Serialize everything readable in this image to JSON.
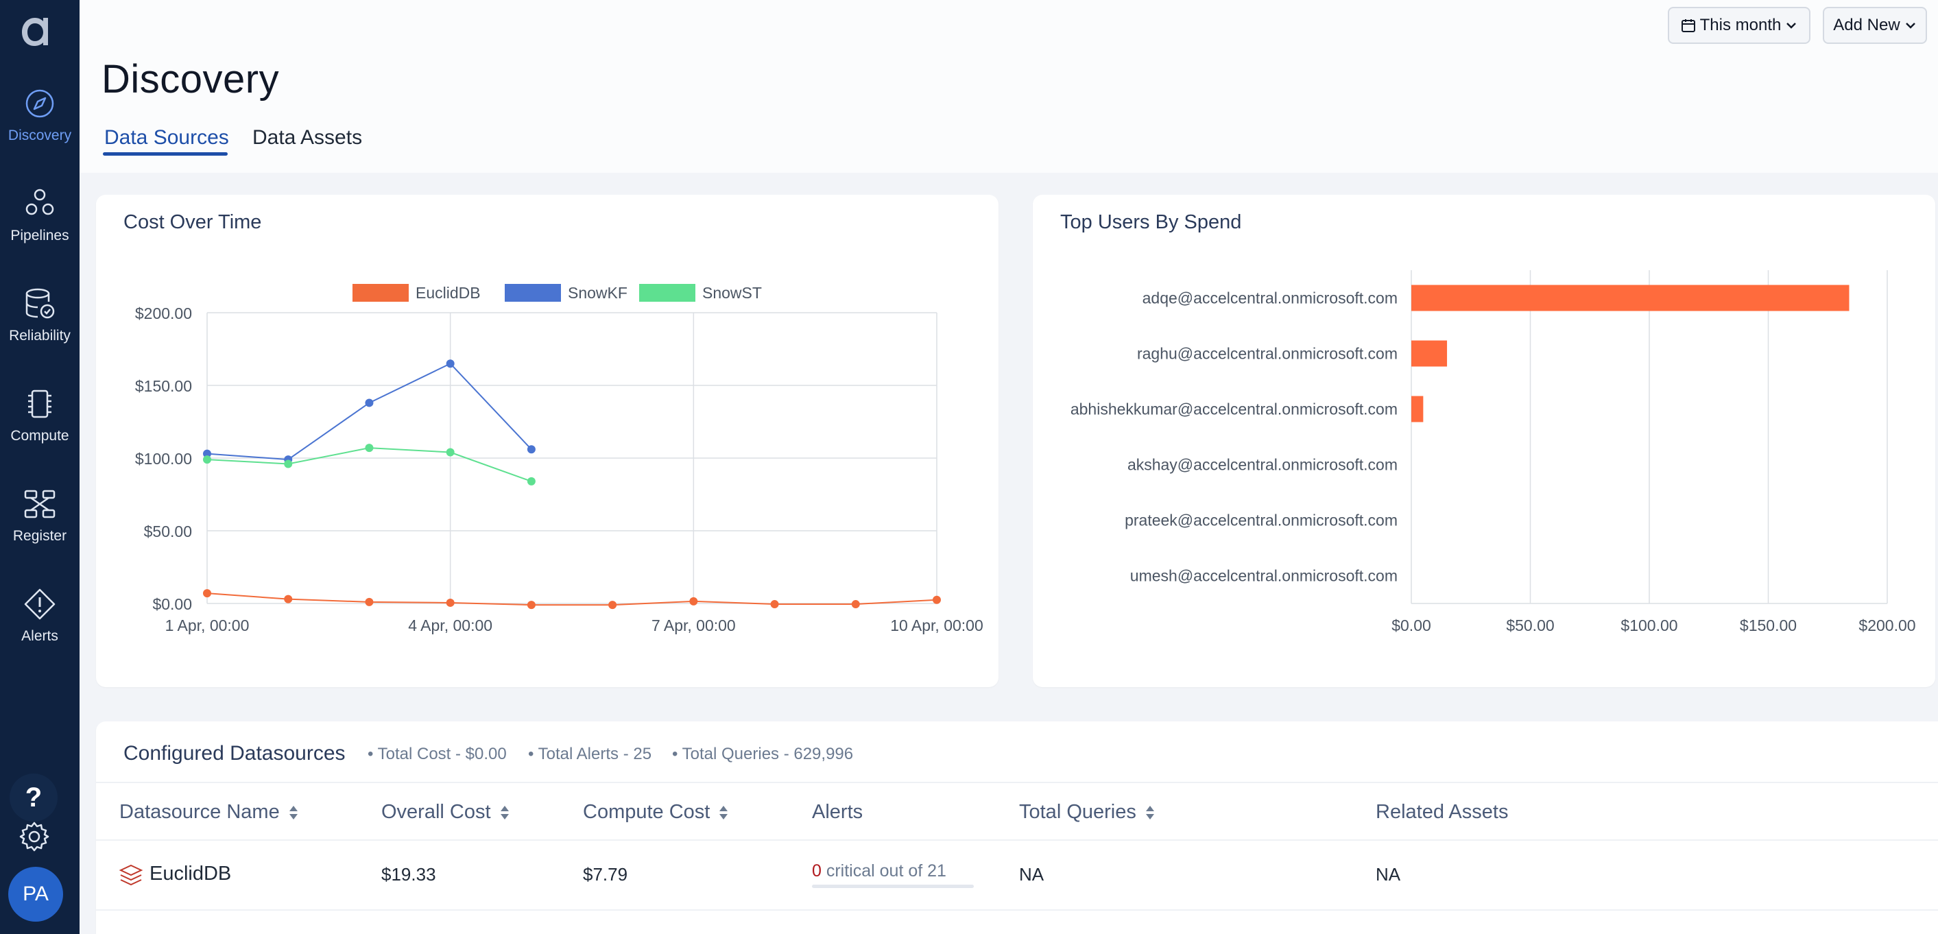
{
  "app": {
    "logo": "a-logo"
  },
  "sidebar": {
    "items": [
      {
        "label": "Discovery",
        "icon": "compass-icon",
        "active": true
      },
      {
        "label": "Pipelines",
        "icon": "pipelines-icon"
      },
      {
        "label": "Reliability",
        "icon": "database-check-icon"
      },
      {
        "label": "Compute",
        "icon": "chip-icon"
      },
      {
        "label": "Register",
        "icon": "register-icon"
      },
      {
        "label": "Alerts",
        "icon": "alert-diamond-icon"
      }
    ],
    "help": "?",
    "avatar": "PA"
  },
  "header": {
    "title": "Discovery",
    "tabs": [
      {
        "label": "Data Sources",
        "active": true
      },
      {
        "label": "Data Assets"
      }
    ],
    "date_filter": "This month",
    "add_new": "Add New"
  },
  "cost_over_time": {
    "title": "Cost Over Time",
    "chart_data": {
      "type": "line",
      "x": [
        "1 Apr, 00:00",
        "2 Apr, 00:00",
        "3 Apr, 00:00",
        "4 Apr, 00:00",
        "5 Apr, 00:00",
        "6 Apr, 00:00",
        "7 Apr, 00:00",
        "8 Apr, 00:00",
        "9 Apr, 00:00",
        "10 Apr, 00:00"
      ],
      "x_tick_labels": [
        "1 Apr, 00:00",
        "4 Apr, 00:00",
        "7 Apr, 00:00",
        "10 Apr, 00:00"
      ],
      "y_tick_labels": [
        "$0.00",
        "$50.00",
        "$100.00",
        "$150.00",
        "$200.00"
      ],
      "ylim": [
        0,
        200
      ],
      "legend_position": "top-center",
      "series": [
        {
          "name": "EuclidDB",
          "color": "#f26b3a",
          "values": [
            7,
            3,
            1,
            0.5,
            -1,
            -1,
            1.5,
            -0.5,
            -0.5,
            2.5
          ]
        },
        {
          "name": "SnowKF",
          "color": "#4a74d1",
          "values": [
            103,
            99,
            138,
            165,
            106,
            null,
            null,
            null,
            null,
            null
          ]
        },
        {
          "name": "SnowST",
          "color": "#5ee090",
          "values": [
            99,
            96,
            107,
            104,
            84,
            null,
            null,
            null,
            null,
            null
          ]
        }
      ]
    }
  },
  "top_users": {
    "title": "Top Users By Spend",
    "chart_data": {
      "type": "bar",
      "orientation": "horizontal",
      "categories": [
        "adqe@accelcentral.onmicrosoft.com",
        "raghu@accelcentral.onmicrosoft.com",
        "abhishekkumar@accelcentral.onmicrosoft.com",
        "akshay@accelcentral.onmicrosoft.com",
        "prateek@accelcentral.onmicrosoft.com",
        "umesh@accelcentral.onmicrosoft.com"
      ],
      "values": [
        184,
        15,
        5,
        0,
        0,
        0
      ],
      "color": "#ff6b3d",
      "xlim": [
        0,
        200
      ],
      "x_tick_labels": [
        "$0.00",
        "$50.00",
        "$100.00",
        "$150.00",
        "$200.00"
      ]
    }
  },
  "datasources": {
    "title": "Configured Datasources",
    "total_cost": "• Total Cost - $0.00",
    "total_alerts": "• Total Alerts - 25",
    "total_queries": "• Total Queries - 629,996",
    "columns": [
      "Datasource Name",
      "Overall Cost",
      "Compute Cost",
      "Alerts",
      "Total Queries",
      "Related Assets"
    ],
    "rows": [
      {
        "name": "EuclidDB",
        "overall_cost": "$19.33",
        "compute_cost": "$7.79",
        "alerts_critical": "0",
        "alerts_text": "critical out of 21",
        "total_queries": "NA",
        "related_assets": "NA"
      }
    ]
  }
}
